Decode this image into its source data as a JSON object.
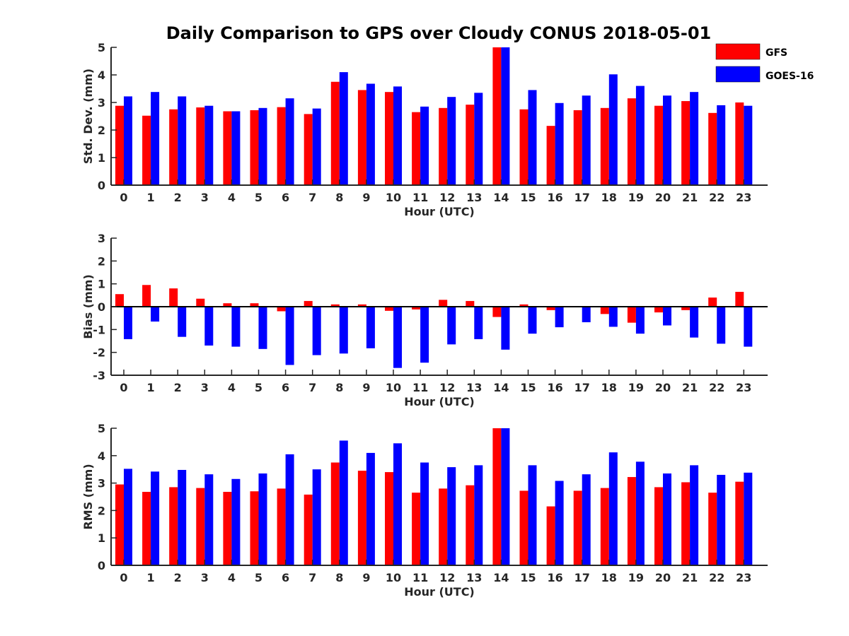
{
  "figure": {
    "title": "Daily Comparison to GPS over Cloudy CONUS 2018-05-01"
  },
  "legend": {
    "placement": "top-right",
    "entries": [
      {
        "name": "GFS",
        "color": "#ff0000"
      },
      {
        "name": "GOES-16",
        "color": "#0000ff"
      }
    ]
  },
  "chart_data": [
    {
      "type": "bar",
      "title": "Daily Comparison to GPS over Cloudy CONUS 2018-05-01",
      "xlabel": "Hour (UTC)",
      "ylabel": "Std. Dev. (mm)",
      "ylim": [
        0,
        5
      ],
      "yticks": [
        "0",
        "1",
        "2",
        "3",
        "4",
        "5"
      ],
      "grid": false,
      "categories": [
        "0",
        "1",
        "2",
        "3",
        "4",
        "5",
        "6",
        "7",
        "8",
        "9",
        "10",
        "11",
        "12",
        "13",
        "14",
        "15",
        "16",
        "17",
        "18",
        "19",
        "20",
        "21",
        "22",
        "23"
      ],
      "series": [
        {
          "name": "GFS",
          "color": "#ff0000",
          "values": [
            2.88,
            2.52,
            2.75,
            2.82,
            2.68,
            2.72,
            2.83,
            2.58,
            3.75,
            3.45,
            3.38,
            2.65,
            2.8,
            2.92,
            5.0,
            2.75,
            2.15,
            2.72,
            2.8,
            3.15,
            2.88,
            3.05,
            2.62,
            3.0
          ]
        },
        {
          "name": "GOES-16",
          "color": "#0000ff",
          "values": [
            3.22,
            3.38,
            3.22,
            2.88,
            2.68,
            2.8,
            3.15,
            2.78,
            4.1,
            3.68,
            3.58,
            2.85,
            3.2,
            3.35,
            5.0,
            3.45,
            2.98,
            3.25,
            4.02,
            3.6,
            3.25,
            3.38,
            2.9,
            2.88
          ]
        }
      ]
    },
    {
      "type": "bar",
      "xlabel": "Hour (UTC)",
      "ylabel": "Bias (mm)",
      "ylim": [
        -3,
        3
      ],
      "yticks": [
        "-3",
        "-2",
        "-1",
        "0",
        "1",
        "2",
        "3"
      ],
      "grid": false,
      "zero_line": true,
      "categories": [
        "0",
        "1",
        "2",
        "3",
        "4",
        "5",
        "6",
        "7",
        "8",
        "9",
        "10",
        "11",
        "12",
        "13",
        "14",
        "15",
        "16",
        "17",
        "18",
        "19",
        "20",
        "21",
        "22",
        "23"
      ],
      "series": [
        {
          "name": "GFS",
          "color": "#ff0000",
          "values": [
            0.55,
            0.95,
            0.8,
            0.35,
            0.15,
            0.15,
            -0.2,
            0.25,
            0.1,
            0.1,
            -0.18,
            -0.12,
            0.3,
            0.25,
            -0.45,
            0.1,
            -0.15,
            0.0,
            -0.32,
            -0.7,
            -0.25,
            -0.15,
            0.4,
            0.65
          ]
        },
        {
          "name": "GOES-16",
          "color": "#0000ff",
          "values": [
            -1.42,
            -0.65,
            -1.32,
            -1.7,
            -1.75,
            -1.85,
            -2.55,
            -2.12,
            -2.05,
            -1.82,
            -2.68,
            -2.45,
            -1.65,
            -1.42,
            -1.88,
            -1.18,
            -0.9,
            -0.68,
            -0.88,
            -1.18,
            -0.82,
            -1.35,
            -1.62,
            -1.75
          ]
        }
      ]
    },
    {
      "type": "bar",
      "xlabel": "Hour (UTC)",
      "ylabel": "RMS (mm)",
      "ylim": [
        0,
        5
      ],
      "yticks": [
        "0",
        "1",
        "2",
        "3",
        "4",
        "5"
      ],
      "grid": false,
      "categories": [
        "0",
        "1",
        "2",
        "3",
        "4",
        "5",
        "6",
        "7",
        "8",
        "9",
        "10",
        "11",
        "12",
        "13",
        "14",
        "15",
        "16",
        "17",
        "18",
        "19",
        "20",
        "21",
        "22",
        "23"
      ],
      "series": [
        {
          "name": "GFS",
          "color": "#ff0000",
          "values": [
            2.95,
            2.68,
            2.85,
            2.82,
            2.68,
            2.7,
            2.8,
            2.58,
            3.75,
            3.45,
            3.4,
            2.65,
            2.8,
            2.92,
            5.0,
            2.72,
            2.15,
            2.72,
            2.82,
            3.22,
            2.85,
            3.03,
            2.65,
            3.05
          ]
        },
        {
          "name": "GOES-16",
          "color": "#0000ff",
          "values": [
            3.52,
            3.42,
            3.48,
            3.32,
            3.15,
            3.35,
            4.05,
            3.5,
            4.55,
            4.1,
            4.45,
            3.75,
            3.58,
            3.65,
            5.0,
            3.65,
            3.08,
            3.32,
            4.12,
            3.78,
            3.35,
            3.65,
            3.3,
            3.38
          ]
        }
      ]
    }
  ]
}
